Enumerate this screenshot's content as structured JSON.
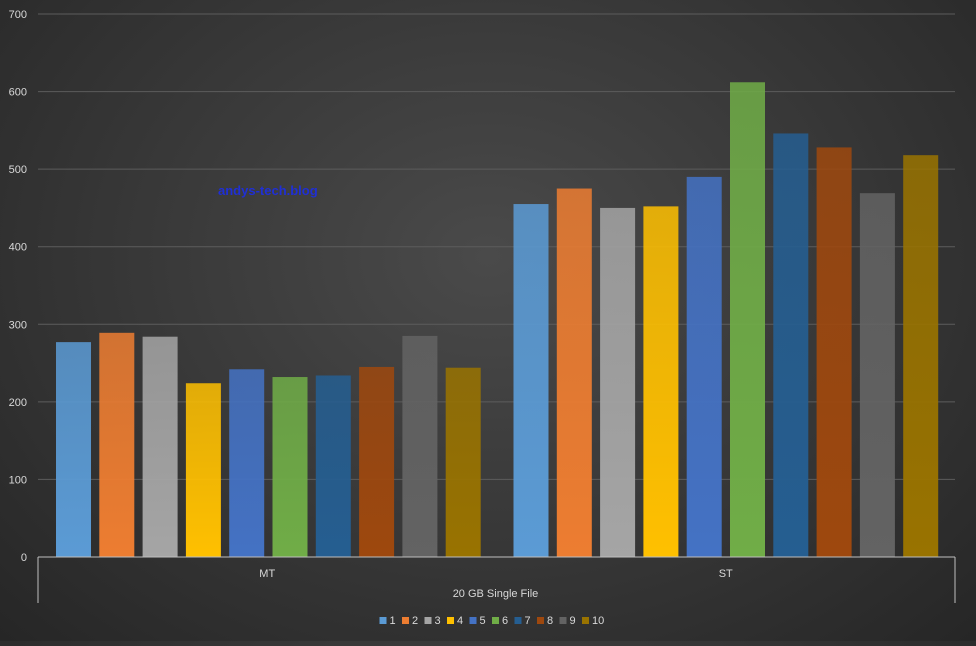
{
  "chart_data": {
    "type": "bar",
    "title": "",
    "watermark": "andys-tech.blog",
    "xlabel": "20 GB Single File",
    "ylabel": "",
    "ylim": [
      0,
      700
    ],
    "yticks": [
      0,
      100,
      200,
      300,
      400,
      500,
      600,
      700
    ],
    "grid": true,
    "legend_position": "bottom",
    "categories": [
      "MT",
      "ST"
    ],
    "series": [
      {
        "name": "1",
        "color": "#5b9bd5",
        "values": [
          277,
          455
        ]
      },
      {
        "name": "2",
        "color": "#ed7d31",
        "values": [
          289,
          475
        ]
      },
      {
        "name": "3",
        "color": "#a5a5a5",
        "values": [
          284,
          450
        ]
      },
      {
        "name": "4",
        "color": "#ffc000",
        "values": [
          224,
          452
        ]
      },
      {
        "name": "5",
        "color": "#4472c4",
        "values": [
          242,
          490
        ]
      },
      {
        "name": "6",
        "color": "#70ad47",
        "values": [
          232,
          612
        ]
      },
      {
        "name": "7",
        "color": "#255e91",
        "values": [
          234,
          546
        ]
      },
      {
        "name": "8",
        "color": "#9e480e",
        "values": [
          245,
          528
        ]
      },
      {
        "name": "9",
        "color": "#636363",
        "values": [
          285,
          469
        ]
      },
      {
        "name": "10",
        "color": "#997300",
        "values": [
          244,
          518
        ]
      }
    ]
  }
}
